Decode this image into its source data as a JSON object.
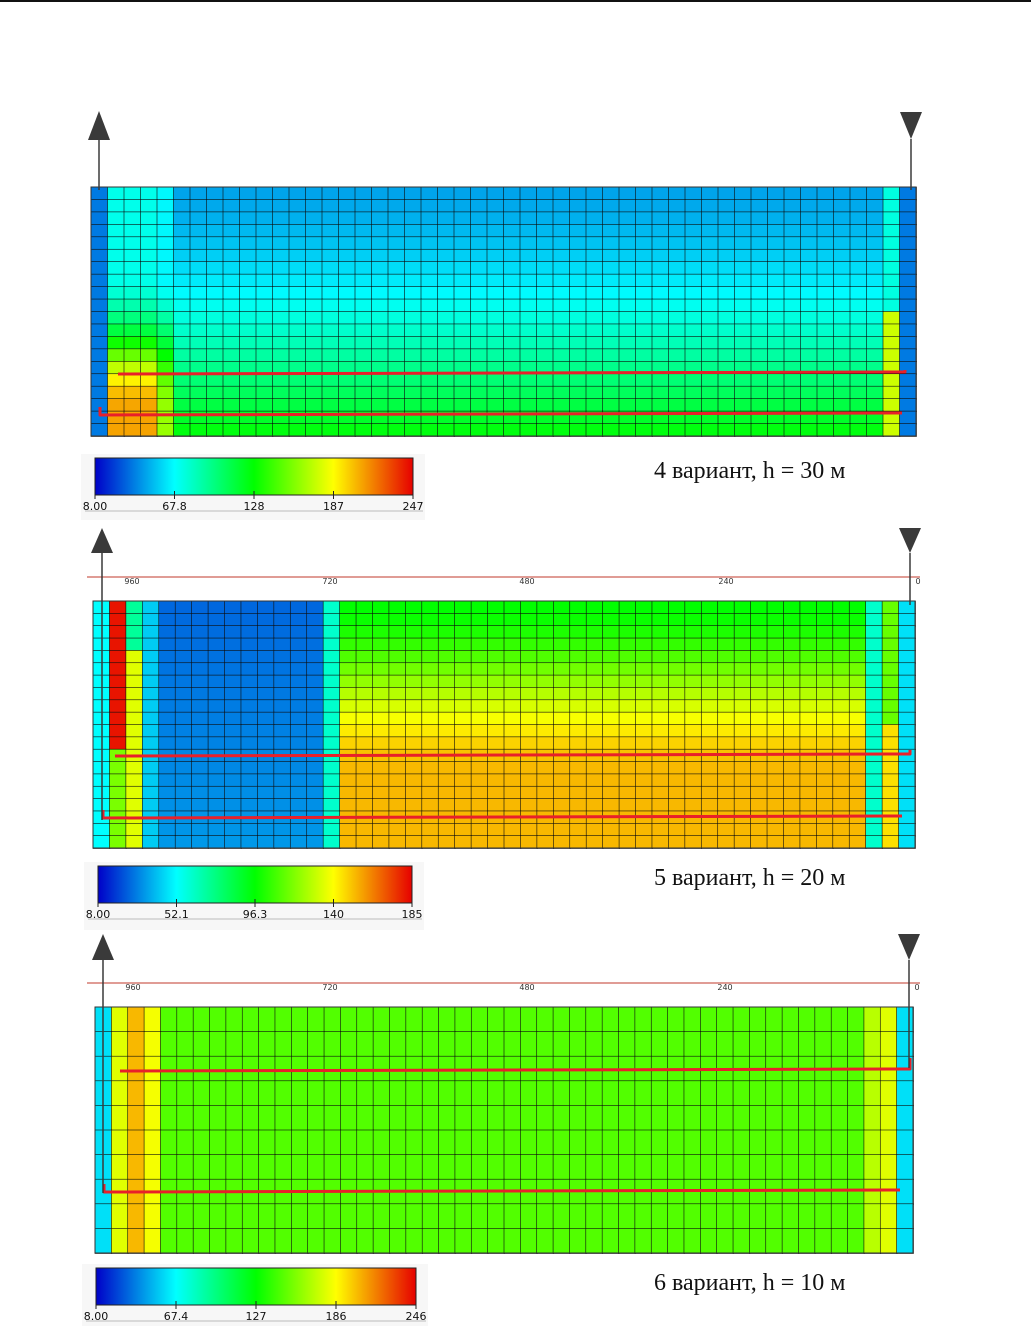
{
  "colors": {
    "well_line": "#e8202a",
    "grid_line": "#0d0d0d",
    "ruler_line": "#c0392b",
    "arrow": "#3a3a3a"
  },
  "icons": {
    "injector": "up-arrow-icon",
    "producer": "down-triangle-icon"
  },
  "panels": [
    {
      "id": "variant-4",
      "label": "4 вариант, h = 30 м",
      "colorbar_ticks": [
        "8.00",
        "67.8",
        "128",
        "187",
        "247"
      ],
      "ruler_ticks": [],
      "field": "v4"
    },
    {
      "id": "variant-5",
      "label": "5 вариант, h = 20 м",
      "colorbar_ticks": [
        "8.00",
        "52.1",
        "96.3",
        "140",
        "185"
      ],
      "ruler_ticks": [
        "960",
        "720",
        "480",
        "240",
        "0"
      ],
      "field": "v5"
    },
    {
      "id": "variant-6",
      "label": "6 вариант, h = 10 м",
      "colorbar_ticks": [
        "8.00",
        "67.4",
        "127",
        "186",
        "246"
      ],
      "ruler_ticks": [
        "960",
        "720",
        "480",
        "240",
        "0"
      ],
      "field": "v6"
    }
  ]
}
